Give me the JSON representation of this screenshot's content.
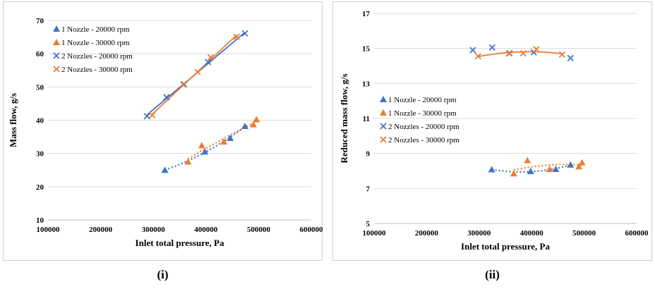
{
  "captions": [
    "(i)",
    "(ii)"
  ],
  "colors": {
    "blue": "#4472C4",
    "orange": "#ED7D31",
    "grid": "#D9D9D9"
  },
  "chart_data": [
    {
      "type": "scatter",
      "title": "",
      "xlabel": "Inlet total pressure, Pa",
      "ylabel": "Mass flow, g/s",
      "xlim": [
        100000,
        600000
      ],
      "ylim": [
        10,
        70
      ],
      "xticks": [
        100000,
        200000,
        300000,
        400000,
        500000,
        600000
      ],
      "yticks": [
        10,
        20,
        30,
        40,
        50,
        60,
        70
      ],
      "grid": "horizontal",
      "legend": "top-left",
      "series": [
        {
          "name": "1 Nozzle - 20000 rpm",
          "marker": "triangle",
          "color": "#4472C4",
          "x": [
            322000,
            398000,
            446000,
            474000
          ],
          "y": [
            25.0,
            30.5,
            34.6,
            38.2
          ],
          "trend": "dotted"
        },
        {
          "name": "1 Nozzle - 30000 rpm",
          "marker": "triangle",
          "color": "#ED7D31",
          "x": [
            366000,
            392000,
            434000,
            490000,
            496000
          ],
          "y": [
            27.5,
            32.4,
            33.5,
            38.7,
            40.2
          ],
          "trend": "dotted"
        },
        {
          "name": "2 Nozzles - 20000 rpm",
          "marker": "x",
          "color": "#4472C4",
          "x": [
            288000,
            325000,
            358000,
            404000,
            474000
          ],
          "y": [
            41.2,
            46.9,
            50.8,
            57.5,
            66.1
          ],
          "trend": "solid"
        },
        {
          "name": "2 Nozzles - 30000 rpm",
          "marker": "x",
          "color": "#ED7D31",
          "x": [
            298000,
            357000,
            384000,
            409000,
            458000
          ],
          "y": [
            41.5,
            50.7,
            54.5,
            58.9,
            65.1
          ],
          "trend": "solid"
        }
      ]
    },
    {
      "type": "scatter",
      "title": "",
      "xlabel": "Inlet total pressure, Pa",
      "ylabel": "Reduced mass flow, g/s",
      "xlim": [
        100000,
        600000
      ],
      "ylim": [
        5,
        17
      ],
      "xticks": [
        100000,
        200000,
        300000,
        400000,
        500000,
        600000
      ],
      "yticks": [
        5,
        7,
        9,
        11,
        13,
        15,
        17
      ],
      "grid": "horizontal",
      "legend": "center-left",
      "series": [
        {
          "name": "1 Nozzle - 20000 rpm",
          "marker": "triangle",
          "color": "#4472C4",
          "x": [
            324000,
            398000,
            446000,
            474000
          ],
          "y": [
            8.08,
            7.98,
            8.1,
            8.35
          ],
          "trend": "dotted"
        },
        {
          "name": "1 Nozzle - 30000 rpm",
          "marker": "triangle",
          "color": "#ED7D31",
          "x": [
            366000,
            392000,
            434000,
            490000,
            496000
          ],
          "y": [
            7.85,
            8.6,
            8.1,
            8.25,
            8.48
          ],
          "trend": "dotted"
        },
        {
          "name": "2 Nozzles - 20000 rpm",
          "marker": "x",
          "color": "#4472C4",
          "x": [
            288000,
            325000,
            358000,
            404000,
            474000
          ],
          "y": [
            14.9,
            15.05,
            14.72,
            14.78,
            14.45
          ],
          "trend": "none"
        },
        {
          "name": "2 Nozzles - 30000 rpm",
          "marker": "x",
          "color": "#ED7D31",
          "x": [
            298000,
            357000,
            384000,
            409000,
            458000
          ],
          "y": [
            14.55,
            14.72,
            14.72,
            14.95,
            14.65
          ],
          "trend": "solid"
        }
      ]
    }
  ]
}
